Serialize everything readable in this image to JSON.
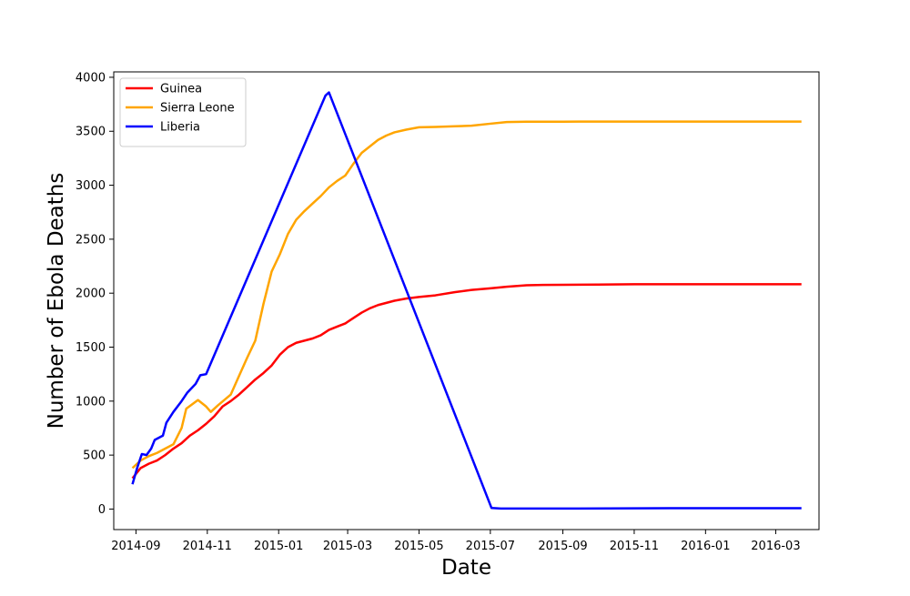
{
  "chart_data": {
    "type": "line",
    "title": "",
    "xlabel": "Date",
    "ylabel": "Number of Ebola Deaths",
    "x_tick_labels": [
      "2014-09",
      "2014-11",
      "2015-01",
      "2015-03",
      "2015-05",
      "2015-07",
      "2015-09",
      "2015-11",
      "2016-01",
      "2016-03"
    ],
    "y_tick_labels": [
      "0",
      "500",
      "1000",
      "1500",
      "2000",
      "2500",
      "3000",
      "3500",
      "4000"
    ],
    "x_ticks": [
      "2014-09-01",
      "2014-11-01",
      "2015-01-01",
      "2015-03-01",
      "2015-05-01",
      "2015-07-01",
      "2015-09-01",
      "2015-11-01",
      "2016-01-01",
      "2016-03-01"
    ],
    "y_ticks": [
      0,
      500,
      1000,
      1500,
      2000,
      2500,
      3000,
      3500,
      4000
    ],
    "xlim": [
      "2014-08-13",
      "2016-04-07"
    ],
    "ylim": [
      -190,
      4050
    ],
    "grid": false,
    "legend_position": "upper-left",
    "series": [
      {
        "name": "Guinea",
        "color": "#ff0000",
        "points": [
          [
            "2014-08-29",
            285
          ],
          [
            "2014-09-05",
            380
          ],
          [
            "2014-09-12",
            420
          ],
          [
            "2014-09-19",
            450
          ],
          [
            "2014-09-26",
            500
          ],
          [
            "2014-10-03",
            560
          ],
          [
            "2014-10-10",
            610
          ],
          [
            "2014-10-17",
            680
          ],
          [
            "2014-10-24",
            730
          ],
          [
            "2014-10-31",
            790
          ],
          [
            "2014-11-07",
            860
          ],
          [
            "2014-11-14",
            950
          ],
          [
            "2014-11-21",
            1000
          ],
          [
            "2014-11-28",
            1060
          ],
          [
            "2014-12-05",
            1130
          ],
          [
            "2014-12-12",
            1200
          ],
          [
            "2014-12-19",
            1260
          ],
          [
            "2014-12-26",
            1330
          ],
          [
            "2015-01-02",
            1430
          ],
          [
            "2015-01-09",
            1500
          ],
          [
            "2015-01-16",
            1540
          ],
          [
            "2015-01-23",
            1560
          ],
          [
            "2015-01-30",
            1580
          ],
          [
            "2015-02-06",
            1610
          ],
          [
            "2015-02-13",
            1660
          ],
          [
            "2015-02-20",
            1690
          ],
          [
            "2015-02-27",
            1720
          ],
          [
            "2015-03-06",
            1770
          ],
          [
            "2015-03-13",
            1820
          ],
          [
            "2015-03-20",
            1860
          ],
          [
            "2015-03-27",
            1890
          ],
          [
            "2015-04-03",
            1910
          ],
          [
            "2015-04-10",
            1930
          ],
          [
            "2015-04-20",
            1950
          ],
          [
            "2015-05-01",
            1965
          ],
          [
            "2015-05-15",
            1980
          ],
          [
            "2015-06-01",
            2010
          ],
          [
            "2015-06-15",
            2030
          ],
          [
            "2015-07-01",
            2045
          ],
          [
            "2015-07-15",
            2060
          ],
          [
            "2015-08-01",
            2073
          ],
          [
            "2015-08-15",
            2076
          ],
          [
            "2015-09-01",
            2078
          ],
          [
            "2015-10-01",
            2080
          ],
          [
            "2015-11-01",
            2083
          ],
          [
            "2016-01-01",
            2083
          ],
          [
            "2016-03-23",
            2083
          ]
        ]
      },
      {
        "name": "Sierra Leone",
        "color": "#ffa500",
        "points": [
          [
            "2014-08-29",
            380
          ],
          [
            "2014-09-05",
            450
          ],
          [
            "2014-09-12",
            490
          ],
          [
            "2014-09-19",
            520
          ],
          [
            "2014-09-26",
            560
          ],
          [
            "2014-10-03",
            600
          ],
          [
            "2014-10-10",
            750
          ],
          [
            "2014-10-14",
            930
          ],
          [
            "2014-10-24",
            1010
          ],
          [
            "2014-10-31",
            950
          ],
          [
            "2014-11-04",
            900
          ],
          [
            "2014-11-10",
            960
          ],
          [
            "2014-11-21",
            1060
          ],
          [
            "2014-11-28",
            1230
          ],
          [
            "2014-12-05",
            1400
          ],
          [
            "2014-12-12",
            1560
          ],
          [
            "2014-12-19",
            1900
          ],
          [
            "2014-12-26",
            2200
          ],
          [
            "2015-01-02",
            2360
          ],
          [
            "2015-01-09",
            2550
          ],
          [
            "2015-01-16",
            2680
          ],
          [
            "2015-01-23",
            2760
          ],
          [
            "2015-01-30",
            2830
          ],
          [
            "2015-02-06",
            2900
          ],
          [
            "2015-02-13",
            2980
          ],
          [
            "2015-02-20",
            3040
          ],
          [
            "2015-02-27",
            3090
          ],
          [
            "2015-03-06",
            3200
          ],
          [
            "2015-03-13",
            3300
          ],
          [
            "2015-03-20",
            3360
          ],
          [
            "2015-03-27",
            3420
          ],
          [
            "2015-04-03",
            3460
          ],
          [
            "2015-04-10",
            3490
          ],
          [
            "2015-04-20",
            3515
          ],
          [
            "2015-05-01",
            3537
          ],
          [
            "2015-05-15",
            3540
          ],
          [
            "2015-06-01",
            3546
          ],
          [
            "2015-06-15",
            3552
          ],
          [
            "2015-07-01",
            3570
          ],
          [
            "2015-07-15",
            3585
          ],
          [
            "2015-08-01",
            3588
          ],
          [
            "2015-09-01",
            3589
          ],
          [
            "2015-10-01",
            3590
          ],
          [
            "2016-01-01",
            3590
          ],
          [
            "2016-03-23",
            3590
          ]
        ]
      },
      {
        "name": "Liberia",
        "color": "#0000ff",
        "points": [
          [
            "2014-08-29",
            230
          ],
          [
            "2014-09-02",
            380
          ],
          [
            "2014-09-06",
            510
          ],
          [
            "2014-09-10",
            500
          ],
          [
            "2014-09-14",
            560
          ],
          [
            "2014-09-17",
            640
          ],
          [
            "2014-09-24",
            680
          ],
          [
            "2014-09-27",
            800
          ],
          [
            "2014-10-03",
            900
          ],
          [
            "2014-10-10",
            1000
          ],
          [
            "2014-10-15",
            1080
          ],
          [
            "2014-10-22",
            1160
          ],
          [
            "2014-10-26",
            1240
          ],
          [
            "2014-10-31",
            1250
          ],
          [
            "2015-02-10",
            3830
          ],
          [
            "2015-02-13",
            3860
          ],
          [
            "2015-07-02",
            10
          ],
          [
            "2015-07-10",
            5
          ],
          [
            "2015-09-01",
            5
          ],
          [
            "2015-12-01",
            8
          ],
          [
            "2016-03-23",
            8
          ]
        ]
      }
    ]
  }
}
